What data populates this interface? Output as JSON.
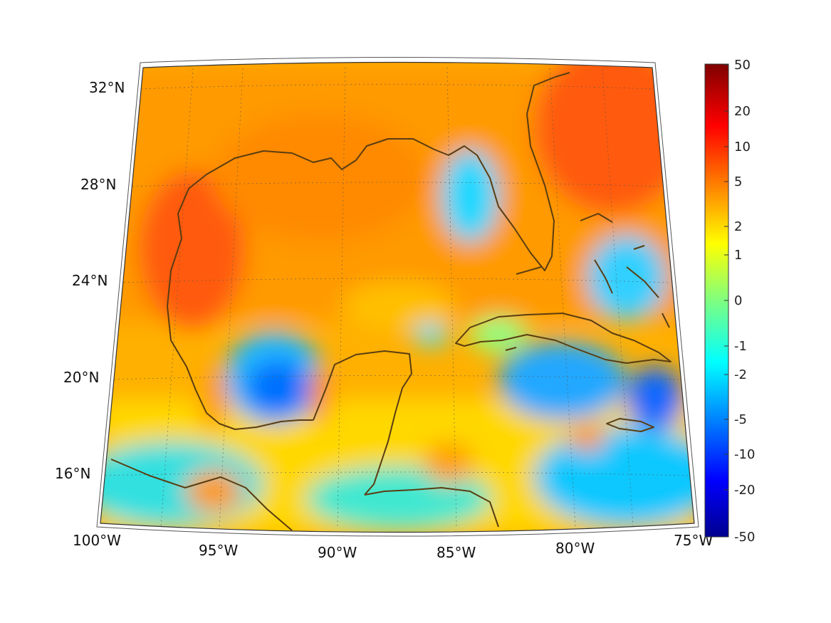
{
  "map": {
    "region": "Gulf of Mexico and Caribbean",
    "projection": "conic",
    "lon_range": [
      -100,
      -75
    ],
    "lat_range": [
      14,
      33
    ],
    "coastline_color": "#5a3d12",
    "gridline_style": "dotted",
    "longitude_labels": [
      "100°W",
      "95°W",
      "90°W",
      "85°W",
      "80°W",
      "75°W"
    ],
    "latitude_labels": [
      "32°N",
      "28°N",
      "24°N",
      "20°N",
      "16°N"
    ]
  },
  "colorbar": {
    "colormap": "jet",
    "orientation": "vertical",
    "placement": "right",
    "scale": "symmetric-log",
    "range": [
      -50,
      50
    ],
    "tick_labels": [
      "50",
      "20",
      "10",
      "5",
      "2",
      "1",
      "0",
      "-1",
      "-2",
      "-5",
      "-10",
      "-20",
      "-50"
    ]
  },
  "field_summary": {
    "high_regions": [
      "northwest Gulf",
      "offshore Georgia / Carolina Atlantic"
    ],
    "low_regions": [
      "Bay of Campeche",
      "west Florida shelf",
      "southeast of Cuba",
      "Windward Passage"
    ],
    "colors": {
      "high": "#ff5500",
      "mid": "#ffd400",
      "neutral": "#7fff7f",
      "low": "#00cfff",
      "very_low": "#0050ff"
    }
  }
}
